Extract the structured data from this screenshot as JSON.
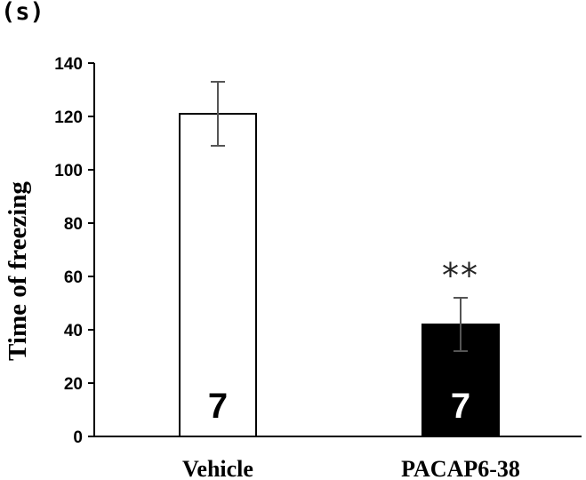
{
  "chart_data": {
    "type": "bar",
    "unit_label": "(s)",
    "ylabel": "Time of freezing",
    "ylim": [
      0,
      140
    ],
    "yticks": [
      0,
      20,
      40,
      60,
      80,
      100,
      120,
      140
    ],
    "categories": [
      "Vehicle",
      "PACAP6-38"
    ],
    "values": [
      121,
      42
    ],
    "errors": [
      12,
      10
    ],
    "fills": [
      "#ffffff",
      "#000000"
    ],
    "n_labels": [
      "7",
      "7"
    ],
    "n_label_colors": [
      "#000000",
      "#ffffff"
    ],
    "significance": [
      "",
      "**"
    ],
    "grid": false,
    "legend": "none"
  }
}
